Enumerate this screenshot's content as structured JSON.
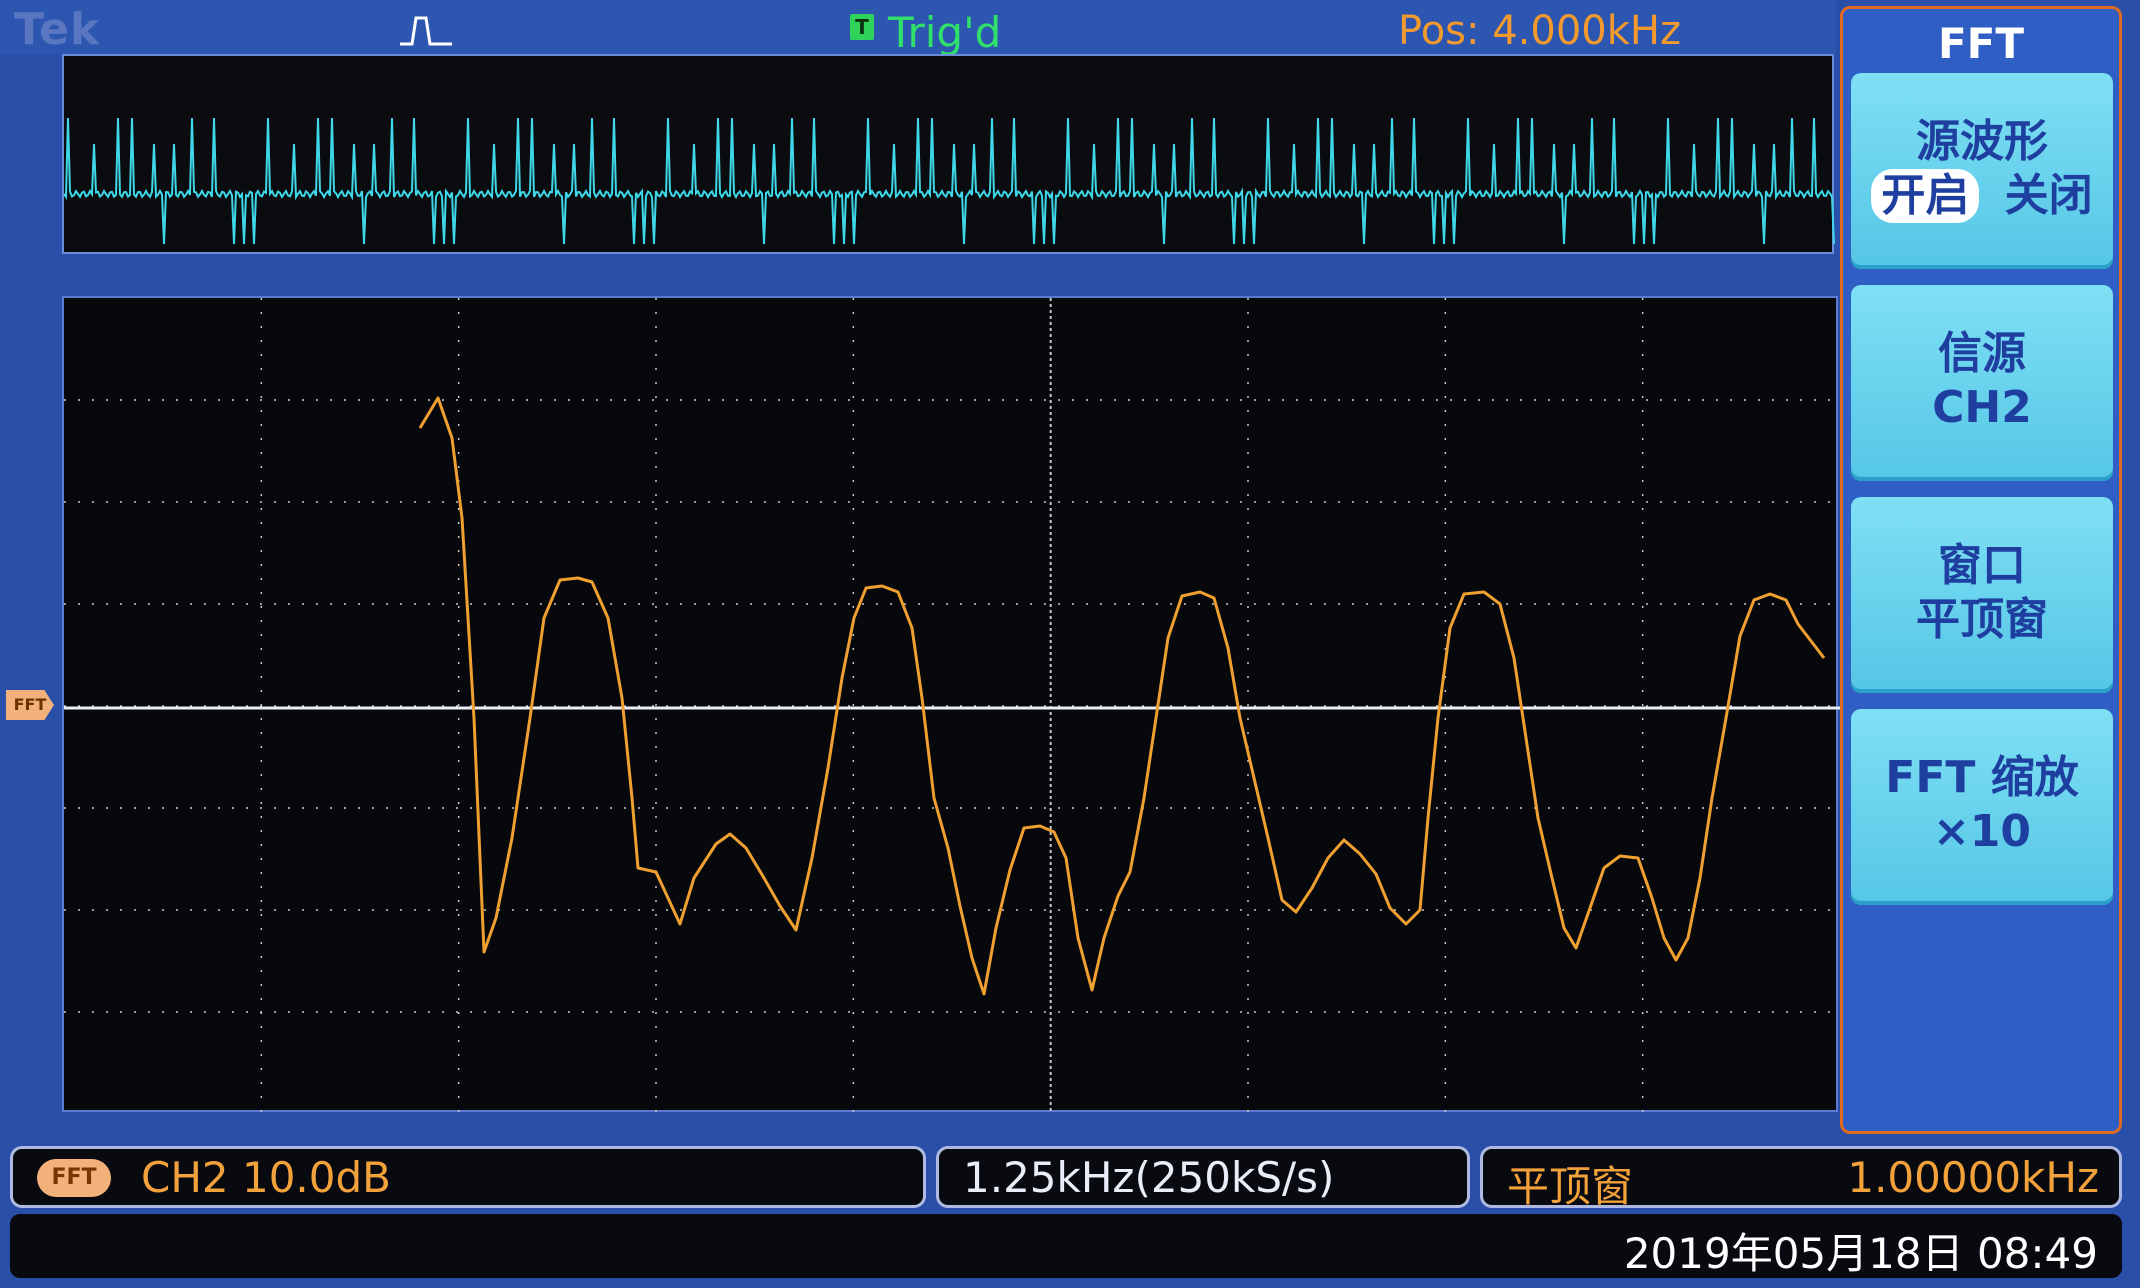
{
  "header": {
    "brand": "Tek",
    "trigger_badge": "T",
    "trigger_status": "Trig'd",
    "position": "Pos: 4.000kHz"
  },
  "colors": {
    "trace_fft": "#f0a030",
    "trace_overview": "#3fd8e8",
    "grid": "#c8c8c8",
    "accent": "#e06a1f"
  },
  "markers": {
    "fft_ref": "FFT"
  },
  "menu": {
    "title": "FFT",
    "buttons": [
      {
        "line1": "源波形",
        "on": "开启",
        "off": "关闭"
      },
      {
        "line1": "信源",
        "line2": "CH2"
      },
      {
        "line1": "窗口",
        "line2": "平顶窗"
      },
      {
        "line1": "FFT 缩放",
        "line2": "×10"
      },
      {
        "line1": ""
      }
    ]
  },
  "status": {
    "ch_badge": "FFT",
    "channel_scale": "CH2  10.0dB",
    "sample_rate": "1.25kHz(250kS/s)",
    "window_type": "平顶窗",
    "frequency": "1.00000kHz",
    "datetime": "2019年05月18日 08:49"
  }
}
